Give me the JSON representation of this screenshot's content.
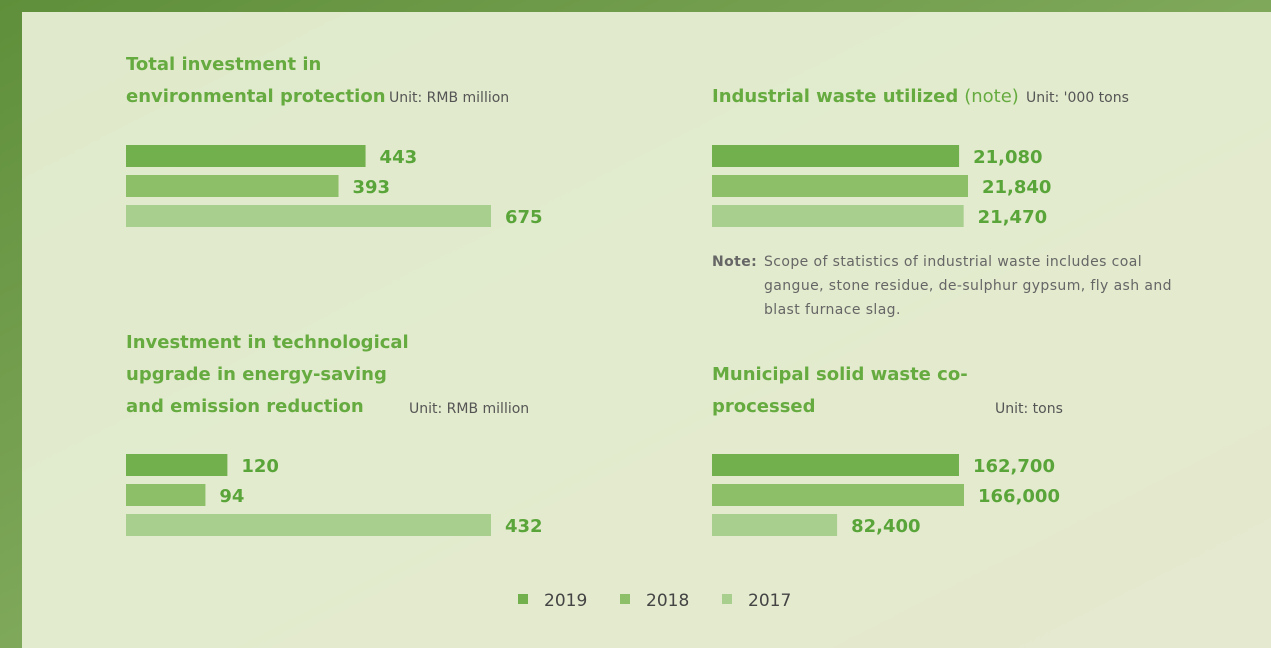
{
  "legend": [
    {
      "name": "2019",
      "color": "#72b04e"
    },
    {
      "name": "2018",
      "color": "#8dbf68"
    },
    {
      "name": "2017",
      "color": "#a9cf8e"
    }
  ],
  "chart_data": [
    {
      "type": "bar",
      "title": [
        "Total investment in",
        "environmental protection"
      ],
      "unit": "Unit: RMB million",
      "values": [
        443,
        393,
        675
      ]
    },
    {
      "type": "bar",
      "title": [
        "Industrial waste utilized"
      ],
      "title_note": "(note)",
      "unit": "Unit: '000 tons",
      "values": [
        21080,
        21840,
        21470
      ],
      "value_labels": [
        "21,080",
        "21,840",
        "21,470"
      ],
      "note": {
        "label": "Note:",
        "lines": [
          "Scope of statistics of industrial waste includes coal",
          "gangue, stone residue, de-sulphur gypsum, fly ash and",
          "blast furnace slag."
        ]
      }
    },
    {
      "type": "bar",
      "title": [
        "Investment in technological",
        "upgrade in energy-saving",
        "and emission reduction"
      ],
      "unit": "Unit: RMB million",
      "values": [
        120,
        94,
        432
      ]
    },
    {
      "type": "bar",
      "title": [
        "Municipal solid waste co-",
        "processed"
      ],
      "unit": "Unit: tons",
      "values": [
        162700,
        166000,
        82400
      ],
      "value_labels": [
        "162,700",
        "166,000",
        "82,400"
      ]
    }
  ]
}
